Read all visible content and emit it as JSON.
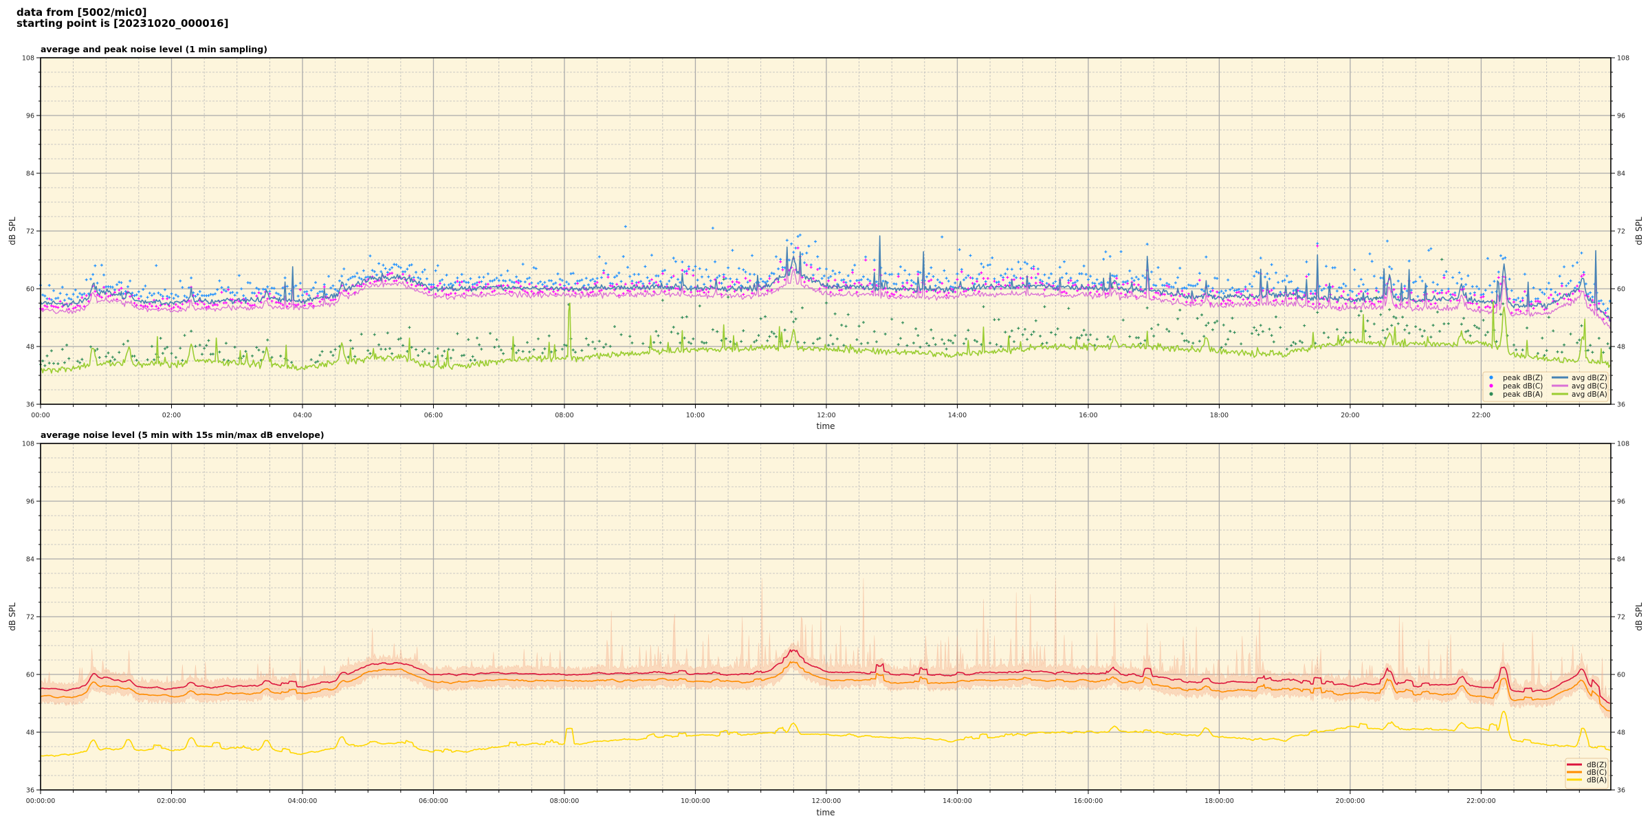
{
  "header": {
    "line1": "data from [5002/mic0]",
    "line2": "starting point is [20231020_000016]"
  },
  "chart_data": [
    {
      "type": "line",
      "title": "average and peak noise level (1 min sampling)",
      "xlabel": "time",
      "ylabel": "dB SPL",
      "ylim": [
        36,
        108
      ],
      "xlim_hours": [
        0,
        23.98
      ],
      "yticks": [
        "108",
        "96",
        "84",
        "72",
        "60",
        "48",
        "36"
      ],
      "xticks": [
        "00:00",
        "02:00",
        "04:00",
        "06:00",
        "08:00",
        "10:00",
        "12:00",
        "14:00",
        "16:00",
        "18:00",
        "20:00",
        "22:00"
      ],
      "grid": true,
      "background": "#fdf5dc",
      "legend_position": "lower-right",
      "sample_step_hours": 0.5,
      "series": [
        {
          "name": "peak dB(Z)",
          "kind": "scatter",
          "color": "#1e90ff"
        },
        {
          "name": "peak dB(C)",
          "kind": "scatter",
          "color": "#ff00ff"
        },
        {
          "name": "peak dB(A)",
          "kind": "scatter",
          "color": "#2e8b57"
        },
        {
          "name": "avg dB(Z)",
          "kind": "line",
          "color": "#4682b4",
          "values": [
            57,
            56.8,
            59.5,
            57.5,
            57,
            57.5,
            57.5,
            57.8,
            57.6,
            58.5,
            62,
            62.5,
            60,
            60,
            60.3,
            60.2,
            60,
            60.2,
            60.3,
            60.4,
            60.2,
            60,
            60,
            63.5,
            60.5,
            60.3,
            60,
            59.8,
            60,
            60.4,
            60.5,
            60.3,
            60.2,
            60,
            59.6,
            58.5,
            58.2,
            58.5,
            58.8,
            58,
            57.8,
            58,
            57.6,
            57.8,
            57.5,
            56.5,
            56.5,
            60,
            53
          ]
        },
        {
          "name": "avg dB(C)",
          "kind": "line",
          "color": "#da70d6",
          "values": [
            55.5,
            55.2,
            57.8,
            56,
            55.5,
            56,
            56,
            56.2,
            56,
            57,
            60.5,
            61,
            58.3,
            58.5,
            58.8,
            58.8,
            58.6,
            58.7,
            58.8,
            58.9,
            58.7,
            58.5,
            58.4,
            61.5,
            58.8,
            58.7,
            58.4,
            58.2,
            58.4,
            58.8,
            58.9,
            58.7,
            58.6,
            58.4,
            58,
            56.8,
            56.5,
            56.8,
            57,
            56.3,
            56,
            56.2,
            55.8,
            56,
            55.6,
            54.7,
            54.8,
            58,
            51.5
          ]
        },
        {
          "name": "avg dB(A)",
          "kind": "line",
          "color": "#9acd32",
          "values": [
            43,
            43.5,
            44.5,
            44.5,
            44.3,
            45,
            44.5,
            44.2,
            43.5,
            44.5,
            45.5,
            45.8,
            43.8,
            44,
            45,
            45.5,
            45.5,
            46,
            46.5,
            47,
            47.5,
            47.5,
            47.8,
            47.5,
            47.5,
            47.2,
            47,
            46.5,
            46.3,
            47,
            47.5,
            48,
            48,
            48,
            48,
            47.5,
            47,
            46.5,
            46.5,
            48,
            49,
            48.5,
            48.5,
            48.5,
            49,
            46.5,
            45.5,
            45,
            44.5
          ]
        }
      ]
    },
    {
      "type": "area",
      "title": "average noise level (5 min with 15s min/max dB envelope)",
      "xlabel": "time",
      "ylabel": "dB SPL",
      "ylim": [
        36,
        108
      ],
      "xlim_hours": [
        0,
        23.98
      ],
      "yticks": [
        "108",
        "96",
        "84",
        "72",
        "60",
        "48",
        "36"
      ],
      "xticks": [
        "00:00:00",
        "02:00:00",
        "04:00:00",
        "06:00:00",
        "08:00:00",
        "10:00:00",
        "12:00:00",
        "14:00:00",
        "16:00:00",
        "18:00:00",
        "20:00:00",
        "22:00:00"
      ],
      "grid": true,
      "background": "#fdf5dc",
      "legend_position": "lower-right",
      "envelope_color": "#f4a582",
      "series": [
        {
          "name": "dB(Z)",
          "color": "#dc143c"
        },
        {
          "name": "dB(C)",
          "color": "#ff8c00"
        },
        {
          "name": "dB(A)",
          "color": "#ffd700"
        }
      ],
      "spikes": [
        {
          "hour": 0.8,
          "z": 2.5,
          "a": 3.5
        },
        {
          "hour": 1.35,
          "z": 1,
          "a": 3.5
        },
        {
          "hour": 2.3,
          "z": 1.2,
          "a": 3.5
        },
        {
          "hour": 3.45,
          "z": 1.5,
          "a": 3.5
        },
        {
          "hour": 4.6,
          "z": 2,
          "a": 4
        },
        {
          "hour": 11.5,
          "z": 3,
          "a": 4
        },
        {
          "hour": 16.4,
          "z": 1.5,
          "a": 2
        },
        {
          "hour": 17.8,
          "z": 1,
          "a": 3
        },
        {
          "hour": 20.6,
          "z": 5,
          "a": 2
        },
        {
          "hour": 21.7,
          "z": 3,
          "a": 2
        },
        {
          "hour": 22.35,
          "z": 8,
          "a": 9
        },
        {
          "hour": 23.55,
          "z": 3,
          "a": 5
        }
      ]
    }
  ]
}
